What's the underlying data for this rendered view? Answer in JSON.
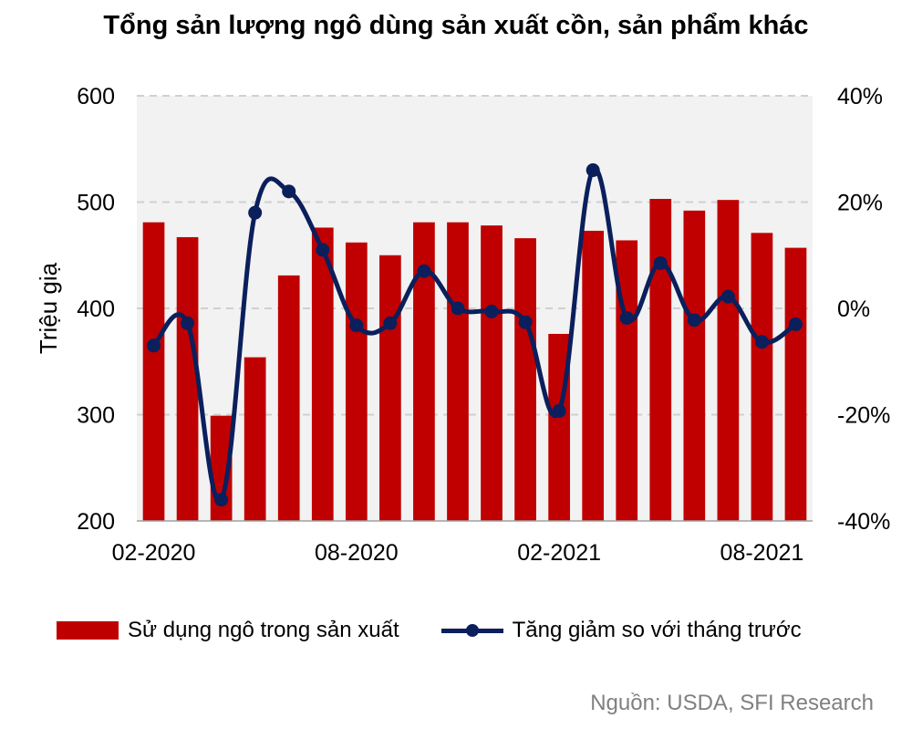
{
  "chart_data": {
    "type": "bar",
    "title": "Tổng sản lượng ngô dùng sản xuất cồn, sản phẩm khác",
    "ylabel": "Triệu giạ",
    "ylim": [
      200,
      600
    ],
    "y_ticks": [
      "200",
      "300",
      "400",
      "500",
      "600"
    ],
    "y2lim": [
      -40,
      40
    ],
    "y2_ticks": [
      "-40%",
      "-20%",
      "0%",
      "20%",
      "40%"
    ],
    "x_tick_labels": [
      {
        "index": 0,
        "label": "02-2020"
      },
      {
        "index": 6,
        "label": "08-2020"
      },
      {
        "index": 12,
        "label": "02-2021"
      },
      {
        "index": 18,
        "label": "08-2021"
      }
    ],
    "categories": [
      "02-2020",
      "03-2020",
      "04-2020",
      "05-2020",
      "06-2020",
      "07-2020",
      "08-2020",
      "09-2020",
      "10-2020",
      "11-2020",
      "12-2020",
      "01-2021",
      "02-2021",
      "03-2021",
      "04-2021",
      "05-2021",
      "06-2021",
      "07-2021",
      "08-2021",
      "09-2021"
    ],
    "series": [
      {
        "name": "Sử dụng ngô trong sản xuất",
        "type": "bar",
        "color": "#c00000",
        "values": [
          481,
          467,
          299,
          354,
          431,
          476,
          462,
          450,
          481,
          481,
          478,
          466,
          376,
          473,
          464,
          503,
          492,
          502,
          471,
          457
        ]
      },
      {
        "name": "Tăng giảm so với tháng trước",
        "type": "line",
        "axis": "right",
        "color": "#0b1f5c",
        "values": [
          -7,
          -2.8,
          -36,
          18,
          22,
          11,
          -3.2,
          -2.8,
          7,
          0,
          -0.6,
          -2.6,
          -19.3,
          26,
          -1.8,
          8.5,
          -2.2,
          2.2,
          -6.3,
          -3
        ]
      }
    ],
    "grid": true,
    "legend_position": "bottom",
    "source": "Nguồn: USDA, SFI Research"
  }
}
